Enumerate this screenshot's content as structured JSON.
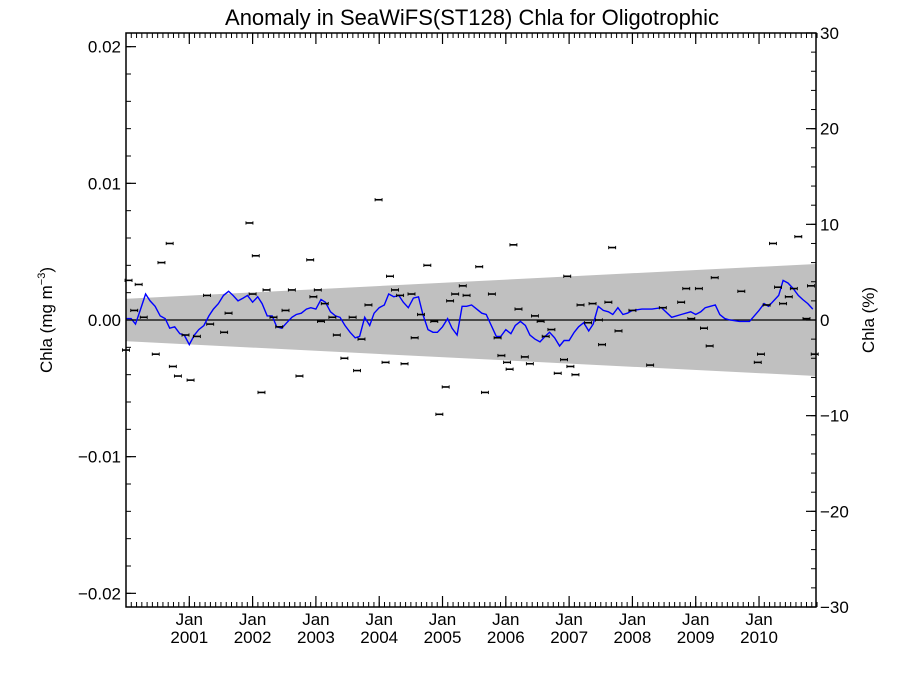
{
  "chart_data": {
    "type": "scatter",
    "title": "Anomaly in SeaWiFS(ST128) Chla for Oligotrophic",
    "ylabel_left": {
      "main": "Chla (mg m",
      "sup": "−3",
      "close": ")"
    },
    "ylabel_right": "Chla (%)",
    "xlim": [
      2000.0,
      2010.9
    ],
    "ylim": [
      -0.021,
      0.021
    ],
    "ylim_right": [
      -30,
      30
    ],
    "y_ticks": [
      {
        "v": 0.02,
        "label": "0.02"
      },
      {
        "v": 0.01,
        "label": "0.01"
      },
      {
        "v": 0.0,
        "label": "0.00"
      },
      {
        "v": -0.01,
        "label": "−0.01"
      },
      {
        "v": -0.02,
        "label": "−0.02"
      }
    ],
    "y_right_ticks": [
      {
        "v": 30,
        "label": "30"
      },
      {
        "v": 20,
        "label": "20"
      },
      {
        "v": 10,
        "label": "10"
      },
      {
        "v": 0,
        "label": "0"
      },
      {
        "v": -10,
        "label": "−10"
      },
      {
        "v": -20,
        "label": "−20"
      },
      {
        "v": -30,
        "label": "−30"
      }
    ],
    "x_ticks": [
      {
        "x": 2001.0,
        "month": "Jan",
        "year": "2001"
      },
      {
        "x": 2002.0,
        "month": "Jan",
        "year": "2002"
      },
      {
        "x": 2003.0,
        "month": "Jan",
        "year": "2003"
      },
      {
        "x": 2004.0,
        "month": "Jan",
        "year": "2004"
      },
      {
        "x": 2005.0,
        "month": "Jan",
        "year": "2005"
      },
      {
        "x": 2006.0,
        "month": "Jan",
        "year": "2006"
      },
      {
        "x": 2007.0,
        "month": "Jan",
        "year": "2007"
      },
      {
        "x": 2008.0,
        "month": "Jan",
        "year": "2008"
      },
      {
        "x": 2009.0,
        "month": "Jan",
        "year": "2009"
      },
      {
        "x": 2010.0,
        "month": "Jan",
        "year": "2010"
      }
    ],
    "band": {
      "start": [
        2000.0,
        0.00155,
        -0.00155
      ],
      "end": [
        2010.9,
        0.0041,
        -0.0041
      ],
      "color": "#c0c0c0"
    },
    "series": [
      {
        "kind": "line",
        "color": "#0000ff",
        "points": [
          [
            2000.0,
            0.0001
          ],
          [
            2000.08,
            0.0001
          ],
          [
            2000.15,
            -0.0003
          ],
          [
            2000.23,
            0.0008
          ],
          [
            2000.31,
            0.0019
          ],
          [
            2000.38,
            0.0014
          ],
          [
            2000.46,
            0.001
          ],
          [
            2000.54,
            0.0003
          ],
          [
            2000.62,
            0.0001
          ],
          [
            2000.69,
            -0.0006
          ],
          [
            2000.77,
            -0.0005
          ],
          [
            2000.85,
            -0.001
          ],
          [
            2000.92,
            -0.0011
          ],
          [
            2001.0,
            -0.0018
          ],
          [
            2001.08,
            -0.0011
          ],
          [
            2001.15,
            -0.0007
          ],
          [
            2001.23,
            -0.0004
          ],
          [
            2001.31,
            0.0003
          ],
          [
            2001.38,
            0.0008
          ],
          [
            2001.46,
            0.0012
          ],
          [
            2001.54,
            0.0018
          ],
          [
            2001.62,
            0.0021
          ],
          [
            2001.69,
            0.0018
          ],
          [
            2001.77,
            0.0014
          ],
          [
            2001.85,
            0.0016
          ],
          [
            2001.92,
            0.0018
          ],
          [
            2002.0,
            0.0013
          ],
          [
            2002.08,
            0.0017
          ],
          [
            2002.15,
            0.0012
          ],
          [
            2002.23,
            0.0003
          ],
          [
            2002.31,
            0.0003
          ],
          [
            2002.38,
            -0.0005
          ],
          [
            2002.46,
            -0.0006
          ],
          [
            2002.54,
            -0.0002
          ],
          [
            2002.62,
            0.0002
          ],
          [
            2002.69,
            0.0004
          ],
          [
            2002.77,
            0.0005
          ],
          [
            2002.85,
            0.0008
          ],
          [
            2002.92,
            0.0009
          ],
          [
            2003.0,
            0.0008
          ],
          [
            2003.08,
            0.0015
          ],
          [
            2003.15,
            0.0013
          ],
          [
            2003.23,
            0.0006
          ],
          [
            2003.31,
            0.0003
          ],
          [
            2003.38,
            0.0002
          ],
          [
            2003.46,
            -0.0004
          ],
          [
            2003.54,
            -0.0009
          ],
          [
            2003.62,
            -0.0013
          ],
          [
            2003.69,
            -0.0012
          ],
          [
            2003.77,
            0.0002
          ],
          [
            2003.85,
            -0.0004
          ],
          [
            2003.92,
            0.0005
          ],
          [
            2004.0,
            0.0009
          ],
          [
            2004.08,
            0.0011
          ],
          [
            2004.15,
            0.0019
          ],
          [
            2004.23,
            0.0017
          ],
          [
            2004.31,
            0.0018
          ],
          [
            2004.38,
            0.0013
          ],
          [
            2004.46,
            0.0009
          ],
          [
            2004.54,
            0.0016
          ],
          [
            2004.62,
            0.0017
          ],
          [
            2004.69,
            0.0004
          ],
          [
            2004.77,
            -0.0007
          ],
          [
            2004.85,
            -0.0009
          ],
          [
            2004.92,
            -0.0009
          ],
          [
            2005.0,
            -0.0005
          ],
          [
            2005.08,
            0.0001
          ],
          [
            2005.15,
            -0.0006
          ],
          [
            2005.23,
            -0.0011
          ],
          [
            2005.31,
            0.001
          ],
          [
            2005.38,
            0.001
          ],
          [
            2005.46,
            0.0011
          ],
          [
            2005.54,
            0.0008
          ],
          [
            2005.62,
            0.0005
          ],
          [
            2005.69,
            0.0004
          ],
          [
            2005.77,
            -0.0004
          ],
          [
            2005.85,
            -0.0012
          ],
          [
            2005.92,
            -0.0012
          ],
          [
            2006.0,
            -0.0007
          ],
          [
            2006.08,
            -0.001
          ],
          [
            2006.15,
            -0.0004
          ],
          [
            2006.23,
            -0.0001
          ],
          [
            2006.31,
            -0.0004
          ],
          [
            2006.38,
            -0.0011
          ],
          [
            2006.46,
            -0.0014
          ],
          [
            2006.54,
            -0.0016
          ],
          [
            2006.62,
            -0.0012
          ],
          [
            2006.69,
            -0.0009
          ],
          [
            2006.77,
            -0.0013
          ],
          [
            2006.85,
            -0.0019
          ],
          [
            2006.92,
            -0.0015
          ],
          [
            2007.0,
            -0.0015
          ],
          [
            2007.08,
            -0.0009
          ],
          [
            2007.15,
            -0.0005
          ],
          [
            2007.23,
            -0.0002
          ],
          [
            2007.31,
            -0.0008
          ],
          [
            2007.38,
            -0.0003
          ],
          [
            2007.46,
            0.001
          ],
          [
            2007.54,
            0.0007
          ],
          [
            2007.62,
            0.0006
          ],
          [
            2007.69,
            0.0004
          ],
          [
            2007.77,
            0.0009
          ],
          [
            2007.85,
            0.0004
          ],
          [
            2007.92,
            0.0005
          ],
          [
            2008.0,
            0.0007
          ],
          [
            2008.15,
            0.0008
          ],
          [
            2008.31,
            0.0008
          ],
          [
            2008.46,
            0.0009
          ],
          [
            2008.62,
            0.0002
          ],
          [
            2008.77,
            0.0004
          ],
          [
            2008.92,
            0.0006
          ],
          [
            2009.0,
            0.0004
          ],
          [
            2009.08,
            0.0006
          ],
          [
            2009.15,
            0.0009
          ],
          [
            2009.23,
            0.001
          ],
          [
            2009.31,
            0.0011
          ],
          [
            2009.38,
            0.0004
          ],
          [
            2009.46,
            0.0001
          ],
          [
            2009.54,
            0.0
          ],
          [
            2009.69,
            -0.0001
          ],
          [
            2009.85,
            -0.0001
          ],
          [
            2010.0,
            0.0007
          ],
          [
            2010.08,
            0.0012
          ],
          [
            2010.15,
            0.001
          ],
          [
            2010.23,
            0.0014
          ],
          [
            2010.31,
            0.0018
          ],
          [
            2010.38,
            0.0029
          ],
          [
            2010.46,
            0.0027
          ],
          [
            2010.54,
            0.0023
          ],
          [
            2010.62,
            0.0018
          ],
          [
            2010.69,
            0.0015
          ],
          [
            2010.77,
            0.0012
          ],
          [
            2010.85,
            0.0008
          ]
        ]
      },
      {
        "kind": "points-with-error-bars",
        "color": "#000000",
        "error": 0.00012,
        "points": [
          [
            2000.0,
            -0.0022
          ],
          [
            2000.04,
            0.0029
          ],
          [
            2000.13,
            0.0007
          ],
          [
            2000.2,
            0.0026
          ],
          [
            2000.28,
            0.0002
          ],
          [
            2000.47,
            -0.0025
          ],
          [
            2000.56,
            0.0042
          ],
          [
            2000.69,
            0.0056
          ],
          [
            2000.74,
            -0.0034
          ],
          [
            2000.82,
            -0.0041
          ],
          [
            2000.94,
            -0.0011
          ],
          [
            2001.02,
            -0.0044
          ],
          [
            2001.12,
            -0.0012
          ],
          [
            2001.28,
            0.0018
          ],
          [
            2001.33,
            -0.0003
          ],
          [
            2001.55,
            -0.0009
          ],
          [
            2001.62,
            0.0005
          ],
          [
            2001.95,
            0.0071
          ],
          [
            2002.0,
            0.0019
          ],
          [
            2002.05,
            0.0047
          ],
          [
            2002.14,
            -0.0053
          ],
          [
            2002.22,
            0.0022
          ],
          [
            2002.33,
            0.0002
          ],
          [
            2002.42,
            -0.0005
          ],
          [
            2002.52,
            0.0007
          ],
          [
            2002.62,
            0.0022
          ],
          [
            2002.74,
            -0.0041
          ],
          [
            2002.91,
            0.0044
          ],
          [
            2002.96,
            0.0017
          ],
          [
            2003.03,
            0.0022
          ],
          [
            2003.08,
            -0.0001
          ],
          [
            2003.14,
            0.0012
          ],
          [
            2003.26,
            0.0002
          ],
          [
            2003.33,
            -0.0011
          ],
          [
            2003.45,
            -0.0028
          ],
          [
            2003.58,
            0.0002
          ],
          [
            2003.65,
            -0.0037
          ],
          [
            2003.72,
            -0.0014
          ],
          [
            2003.83,
            0.0011
          ],
          [
            2003.99,
            0.0088
          ],
          [
            2004.1,
            -0.0031
          ],
          [
            2004.17,
            0.0032
          ],
          [
            2004.25,
            0.0022
          ],
          [
            2004.33,
            0.0018
          ],
          [
            2004.4,
            -0.0032
          ],
          [
            2004.51,
            0.0019
          ],
          [
            2004.56,
            -0.0013
          ],
          [
            2004.66,
            0.0004
          ],
          [
            2004.76,
            0.004
          ],
          [
            2004.87,
            -0.0001
          ],
          [
            2004.95,
            -0.0069
          ],
          [
            2005.05,
            -0.0049
          ],
          [
            2005.12,
            0.0014
          ],
          [
            2005.2,
            0.0019
          ],
          [
            2005.32,
            0.0025
          ],
          [
            2005.38,
            0.0018
          ],
          [
            2005.58,
            0.0039
          ],
          [
            2005.67,
            -0.0053
          ],
          [
            2005.78,
            0.0019
          ],
          [
            2005.87,
            -0.0013
          ],
          [
            2005.93,
            -0.0026
          ],
          [
            2006.02,
            -0.0031
          ],
          [
            2006.06,
            -0.0036
          ],
          [
            2006.12,
            0.0055
          ],
          [
            2006.2,
            0.0008
          ],
          [
            2006.3,
            -0.0027
          ],
          [
            2006.38,
            -0.0032
          ],
          [
            2006.46,
            0.0003
          ],
          [
            2006.55,
            -0.0001
          ],
          [
            2006.63,
            -0.0012
          ],
          [
            2006.72,
            -0.0007
          ],
          [
            2006.82,
            -0.0039
          ],
          [
            2006.92,
            -0.0029
          ],
          [
            2006.97,
            0.0032
          ],
          [
            2007.02,
            -0.0034
          ],
          [
            2007.1,
            -0.004
          ],
          [
            2007.18,
            0.0011
          ],
          [
            2007.3,
            -0.0002
          ],
          [
            2007.37,
            0.0012
          ],
          [
            2007.47,
            0.0
          ],
          [
            2007.52,
            -0.0018
          ],
          [
            2007.62,
            0.0013
          ],
          [
            2007.68,
            0.0053
          ],
          [
            2007.78,
            -0.0008
          ],
          [
            2008.0,
            0.0007
          ],
          [
            2008.28,
            -0.0033
          ],
          [
            2008.48,
            0.0009
          ],
          [
            2008.77,
            0.0013
          ],
          [
            2008.85,
            0.0023
          ],
          [
            2008.93,
            0.0001
          ],
          [
            2009.05,
            0.0023
          ],
          [
            2009.13,
            -0.0006
          ],
          [
            2009.22,
            -0.0019
          ],
          [
            2009.3,
            0.0031
          ],
          [
            2009.72,
            0.0021
          ],
          [
            2009.98,
            -0.0031
          ],
          [
            2010.03,
            -0.0025
          ],
          [
            2010.12,
            0.0011
          ],
          [
            2010.22,
            0.0056
          ],
          [
            2010.3,
            0.0024
          ],
          [
            2010.38,
            0.0012
          ],
          [
            2010.47,
            0.0017
          ],
          [
            2010.55,
            0.0023
          ],
          [
            2010.62,
            0.0061
          ],
          [
            2010.75,
            0.0001
          ],
          [
            2010.82,
            0.0025
          ],
          [
            2010.88,
            -0.0025
          ]
        ]
      }
    ],
    "zero_line": true,
    "grid": false,
    "legend": "none"
  }
}
